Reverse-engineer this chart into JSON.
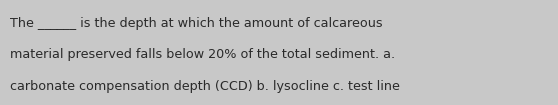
{
  "line1": "The ______ is the depth at which the amount of calcareous",
  "line2": "material preserved falls below 20% of the total sediment. a.",
  "line3": "carbonate compensation depth (CCD) b. lysocline c. test line",
  "background_color": "#c8c8c8",
  "text_color": "#2a2a2a",
  "font_size": 9.2,
  "fig_width": 5.58,
  "fig_height": 1.05,
  "dpi": 100
}
